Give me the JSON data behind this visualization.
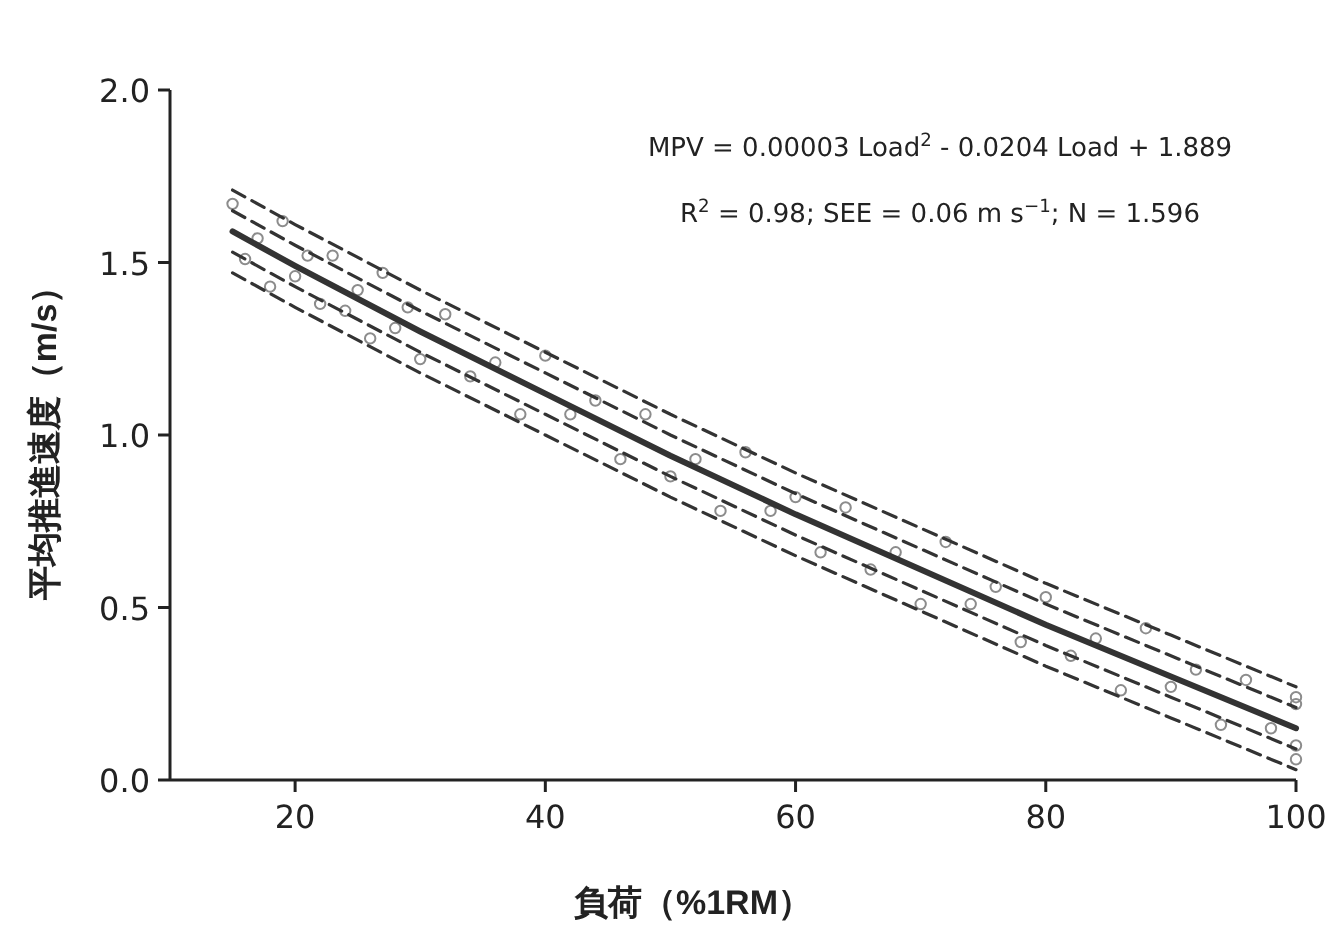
{
  "chart_data": {
    "type": "scatter",
    "xlabel": "負荷（%1RM）",
    "ylabel": "平均推進速度（m/s）",
    "xlim": [
      10,
      100
    ],
    "xticks": [
      20,
      40,
      60,
      80,
      100
    ],
    "ylim": [
      0,
      2
    ],
    "yticks": [
      {
        "value": 0,
        "label": "0.0"
      },
      {
        "value": 0.5,
        "label": "0.5"
      },
      {
        "value": 1,
        "label": "1.0"
      },
      {
        "value": 1.5,
        "label": "1.5"
      },
      {
        "value": 2,
        "label": "2.0"
      }
    ],
    "annotations": [
      "MPV = 0.00003 Load$^{2}$ - 0.0204 Load + 1.889",
      "R$^{2}$ = 0.98; SEE = 0.06 m s$^{−1}$; N = 1.596"
    ],
    "series": [
      {
        "marker": "circle",
        "color": "#8c8c8c",
        "x": [
          15,
          16,
          17,
          18,
          19,
          20,
          21,
          22,
          23,
          24,
          25,
          26,
          27,
          28,
          29,
          30,
          32,
          34,
          36,
          38,
          40,
          42,
          44,
          46,
          48,
          50,
          52,
          54,
          56,
          58,
          60,
          62,
          64,
          66,
          68,
          70,
          72,
          74,
          76,
          78,
          80,
          82,
          84,
          86,
          88,
          90,
          92,
          94,
          96,
          98,
          100,
          100,
          100,
          100
        ],
        "values": [
          1.67,
          1.51,
          1.57,
          1.43,
          1.62,
          1.46,
          1.52,
          1.38,
          1.52,
          1.36,
          1.42,
          1.28,
          1.47,
          1.31,
          1.37,
          1.22,
          1.35,
          1.17,
          1.21,
          1.06,
          1.23,
          1.06,
          1.1,
          0.93,
          1.06,
          0.88,
          0.93,
          0.78,
          0.95,
          0.78,
          0.82,
          0.66,
          0.79,
          0.61,
          0.66,
          0.51,
          0.69,
          0.51,
          0.56,
          0.4,
          0.53,
          0.36,
          0.41,
          0.26,
          0.44,
          0.27,
          0.32,
          0.16,
          0.29,
          0.15,
          0.22,
          0.1,
          0.06,
          0.24
        ]
      },
      {
        "type": "line",
        "line_style": "solid",
        "color": "#333333",
        "x": [
          15,
          20,
          30,
          40,
          50,
          60,
          70,
          80,
          90,
          100
        ],
        "values": [
          1.59,
          1.49,
          1.3,
          1.12,
          0.94,
          0.77,
          0.61,
          0.45,
          0.3,
          0.15
        ]
      },
      {
        "type": "line",
        "line_style": "dashed",
        "color": "#333333",
        "x": [
          15,
          20,
          30,
          40,
          50,
          60,
          70,
          80,
          90,
          100
        ],
        "values": [
          1.71,
          1.61,
          1.42,
          1.24,
          1.06,
          0.89,
          0.73,
          0.57,
          0.42,
          0.27
        ]
      },
      {
        "type": "line",
        "line_style": "dashed",
        "color": "#333333",
        "x": [
          15,
          20,
          30,
          40,
          50,
          60,
          70,
          80,
          90,
          100
        ],
        "values": [
          1.65,
          1.55,
          1.36,
          1.18,
          1.0,
          0.83,
          0.67,
          0.51,
          0.36,
          0.21
        ]
      },
      {
        "type": "line",
        "line_style": "dashed",
        "color": "#333333",
        "x": [
          15,
          20,
          30,
          40,
          50,
          60,
          70,
          80,
          90,
          100
        ],
        "values": [
          1.53,
          1.43,
          1.24,
          1.06,
          0.88,
          0.71,
          0.55,
          0.39,
          0.24,
          0.09
        ]
      },
      {
        "type": "line",
        "line_style": "dashed",
        "color": "#333333",
        "x": [
          15,
          20,
          30,
          40,
          50,
          60,
          70,
          80,
          90,
          100
        ],
        "values": [
          1.47,
          1.37,
          1.18,
          1.0,
          0.82,
          0.65,
          0.49,
          0.33,
          0.18,
          0.03
        ]
      }
    ]
  }
}
